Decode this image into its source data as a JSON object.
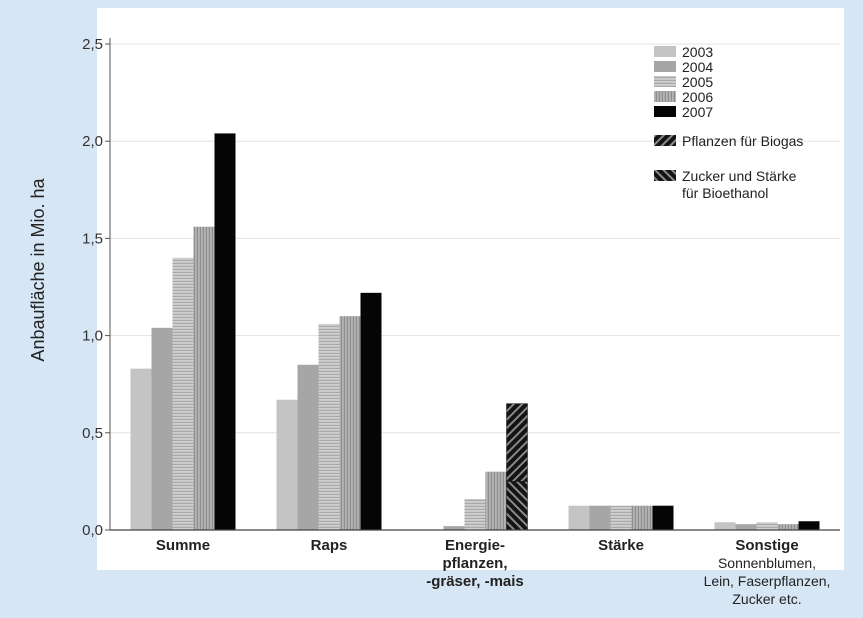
{
  "chart_data": {
    "type": "bar",
    "ylabel": "Anbaufläche in Mio. ha",
    "ylim": [
      0,
      2.5
    ],
    "yticks": [
      0,
      0.5,
      1.0,
      1.5,
      2.0,
      2.5
    ],
    "ytick_labels": [
      "0,0",
      "0,5",
      "1,0",
      "1,5",
      "2,0",
      "2,5"
    ],
    "grid": true,
    "legend_position": "top-right",
    "categories": [
      {
        "label": "Summe",
        "sublabel": []
      },
      {
        "label": "Raps",
        "sublabel": []
      },
      {
        "label": "Energie-\npflanzen,\n-gräser, -mais",
        "sublabel": []
      },
      {
        "label": "Stärke",
        "sublabel": []
      },
      {
        "label": "Sonstige",
        "sublabel": [
          "Sonnenblumen,",
          "Lein, Faserpflanzen,",
          "Zucker etc."
        ]
      }
    ],
    "series": [
      {
        "name": "2003",
        "values": [
          0.83,
          0.67,
          0.0,
          0.125,
          0.04
        ],
        "color": "#c4c4c4",
        "pattern": "none"
      },
      {
        "name": "2004",
        "values": [
          1.04,
          0.85,
          0.02,
          0.125,
          0.03
        ],
        "color": "#a6a6a6",
        "pattern": "none"
      },
      {
        "name": "2005",
        "values": [
          1.4,
          1.06,
          0.16,
          0.125,
          0.04
        ],
        "color": "#bdbdbd",
        "pattern": "hlines"
      },
      {
        "name": "2006",
        "values": [
          1.56,
          1.1,
          0.3,
          0.125,
          0.03
        ],
        "color": "#a3a3a3",
        "pattern": "vlines"
      },
      {
        "name": "2007",
        "values": [
          2.04,
          1.22,
          0.65,
          0.125,
          0.045
        ],
        "color": "#050505",
        "pattern": "none"
      }
    ],
    "legend_extra": [
      {
        "name": "Pflanzen für Biogas",
        "pattern": "diag-fwd"
      },
      {
        "name": "Zucker und Stärke\nfür Bioethanol",
        "pattern": "diag-back"
      }
    ],
    "stacked_2007_energie": {
      "category": "Energie-\npflanzen,\n-gräser, -mais",
      "biogas": 0.4,
      "bioethanol": 0.25
    }
  }
}
